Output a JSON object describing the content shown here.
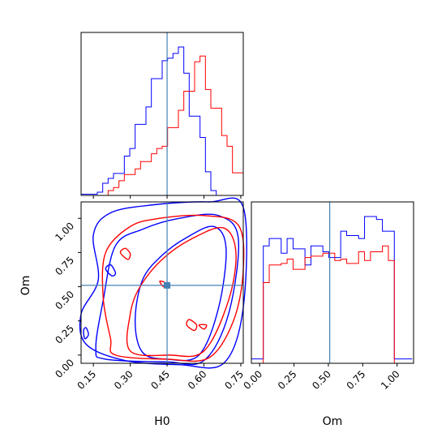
{
  "chart_data": {
    "type": "corner",
    "parameters": [
      "H0",
      "Om"
    ],
    "truth": {
      "H0": 0.45,
      "Om": 0.51
    },
    "colors": {
      "blue": "#0000ff",
      "red": "#ff0000",
      "truth": "#4682b4",
      "frame": "#000000"
    },
    "axes": {
      "H0": {
        "xlabel": "H0",
        "range": [
          0.1,
          0.76
        ],
        "ticks": [
          0.15,
          0.3,
          0.45,
          0.6,
          0.75
        ],
        "tick_labels": [
          "0.15",
          "0.30",
          "0.45",
          "0.60",
          "0.75"
        ]
      },
      "Om": {
        "xlabel": "Om",
        "ylabel": "Om",
        "range": [
          -0.06,
          1.12
        ],
        "ticks": [
          0.0,
          0.25,
          0.5,
          0.75,
          1.0
        ],
        "tick_labels": [
          "0.00",
          "0.25",
          "0.50",
          "0.75",
          "1.00"
        ]
      }
    },
    "hist_H0": {
      "bin_edges": [
        0.1,
        0.122,
        0.144,
        0.166,
        0.188,
        0.21,
        0.232,
        0.254,
        0.276,
        0.298,
        0.32,
        0.342,
        0.364,
        0.386,
        0.408,
        0.43,
        0.452,
        0.474,
        0.496,
        0.518,
        0.54,
        0.562,
        0.584,
        0.606,
        0.628,
        0.65,
        0.672,
        0.694,
        0.716,
        0.738,
        0.76
      ],
      "series": [
        {
          "color": "blue",
          "values": [
            0.8,
            0.8,
            0.8,
            2.2,
            8.2,
            11.5,
            14.8,
            14.8,
            26.5,
            31.6,
            47.9,
            47.9,
            59.6,
            78.7,
            78.7,
            90.8,
            92.5,
            95.7,
            100.0,
            82.4,
            53.4,
            53.4,
            39.1,
            15.9,
            3.3,
            0,
            0,
            0,
            0,
            0
          ]
        },
        {
          "color": "red",
          "values": [
            0,
            0,
            0,
            0,
            0,
            3.3,
            5.3,
            9.9,
            14.1,
            14.1,
            17.9,
            22.8,
            22.8,
            28.1,
            31.6,
            33.1,
            45.7,
            45.7,
            57.4,
            70.2,
            70.2,
            90.1,
            93.9,
            71.4,
            58.8,
            58.8,
            40.4,
            33.1,
            15.2,
            15.2
          ]
        }
      ]
    },
    "hist_Om": {
      "bin_edges": [
        -0.06,
        -0.0167,
        0.0267,
        0.07,
        0.1133,
        0.1567,
        0.2,
        0.2433,
        0.2867,
        0.33,
        0.3733,
        0.4167,
        0.46,
        0.5033,
        0.5467,
        0.59,
        0.6333,
        0.6767,
        0.72,
        0.7633,
        0.8067,
        0.85,
        0.8933,
        0.9367,
        0.98,
        1.0233,
        1.0667,
        1.11
      ],
      "series": [
        {
          "color": "blue",
          "values": [
            3,
            3,
            80,
            85,
            85,
            75,
            85,
            78,
            78,
            67,
            80,
            80,
            76,
            72,
            72,
            90,
            87,
            87,
            85,
            100,
            100,
            98,
            90,
            90,
            3,
            3,
            3
          ]
        },
        {
          "color": "red",
          "values": [
            0,
            0,
            55,
            67,
            67,
            68,
            71,
            64,
            64,
            72,
            73,
            73,
            75,
            75,
            70,
            71,
            68,
            68,
            76,
            70,
            76,
            76,
            80,
            70,
            0,
            0,
            0
          ]
        }
      ]
    },
    "contours": {
      "blue": [
        [
          [
            0.35,
            0.02
          ],
          [
            0.45,
            -0.03
          ],
          [
            0.58,
            0.0
          ],
          [
            0.66,
            0.35
          ],
          [
            0.69,
            0.78
          ],
          [
            0.64,
            0.94
          ],
          [
            0.53,
            0.86
          ],
          [
            0.43,
            0.73
          ],
          [
            0.35,
            0.55
          ],
          [
            0.32,
            0.25
          ]
        ],
        [
          [
            0.2,
            -0.03
          ],
          [
            0.45,
            -0.05
          ],
          [
            0.6,
            -0.04
          ],
          [
            0.7,
            0.3
          ],
          [
            0.74,
            0.85
          ],
          [
            0.66,
            1.02
          ],
          [
            0.5,
            1.0
          ],
          [
            0.35,
            0.92
          ],
          [
            0.24,
            0.8
          ],
          [
            0.19,
            0.4
          ],
          [
            0.16,
            0.05
          ]
        ],
        [
          [
            0.12,
            0.08
          ],
          [
            0.28,
            -0.04
          ],
          [
            0.5,
            -0.07
          ],
          [
            0.68,
            -0.06
          ],
          [
            0.76,
            0.35
          ],
          [
            0.76,
            1.08
          ],
          [
            0.62,
            1.12
          ],
          [
            0.4,
            1.1
          ],
          [
            0.22,
            1.04
          ],
          [
            0.15,
            0.88
          ],
          [
            0.17,
            0.55
          ],
          [
            0.1,
            0.3
          ]
        ],
        [
          [
            0.11,
            0.18
          ],
          [
            0.115,
            0.12
          ],
          [
            0.13,
            0.15
          ],
          [
            0.12,
            0.2
          ]
        ],
        [
          [
            0.2,
            0.63
          ],
          [
            0.225,
            0.58
          ],
          [
            0.24,
            0.6
          ],
          [
            0.22,
            0.66
          ]
        ]
      ],
      "red": [
        [
          [
            0.3,
            0.03
          ],
          [
            0.46,
            0.0
          ],
          [
            0.6,
            0.03
          ],
          [
            0.7,
            0.4
          ],
          [
            0.73,
            0.75
          ],
          [
            0.68,
            0.93
          ],
          [
            0.55,
            0.85
          ],
          [
            0.43,
            0.7
          ],
          [
            0.34,
            0.5
          ],
          [
            0.3,
            0.3
          ]
        ],
        [
          [
            0.24,
            0.0
          ],
          [
            0.45,
            -0.03
          ],
          [
            0.62,
            -0.02
          ],
          [
            0.72,
            0.25
          ],
          [
            0.76,
            0.62
          ],
          [
            0.74,
            0.95
          ],
          [
            0.6,
            1.02
          ],
          [
            0.42,
            1.0
          ],
          [
            0.3,
            0.94
          ],
          [
            0.2,
            0.75
          ],
          [
            0.19,
            0.42
          ],
          [
            0.22,
            0.12
          ]
        ],
        [
          [
            0.26,
            0.75
          ],
          [
            0.29,
            0.7
          ],
          [
            0.3,
            0.74
          ],
          [
            0.28,
            0.78
          ]
        ],
        [
          [
            0.42,
            0.54
          ],
          [
            0.435,
            0.5
          ],
          [
            0.44,
            0.53
          ]
        ],
        [
          [
            0.53,
            0.22
          ],
          [
            0.56,
            0.18
          ],
          [
            0.57,
            0.22
          ],
          [
            0.54,
            0.26
          ]
        ],
        [
          [
            0.58,
            0.22
          ],
          [
            0.6,
            0.19
          ],
          [
            0.61,
            0.22
          ]
        ]
      ]
    }
  }
}
